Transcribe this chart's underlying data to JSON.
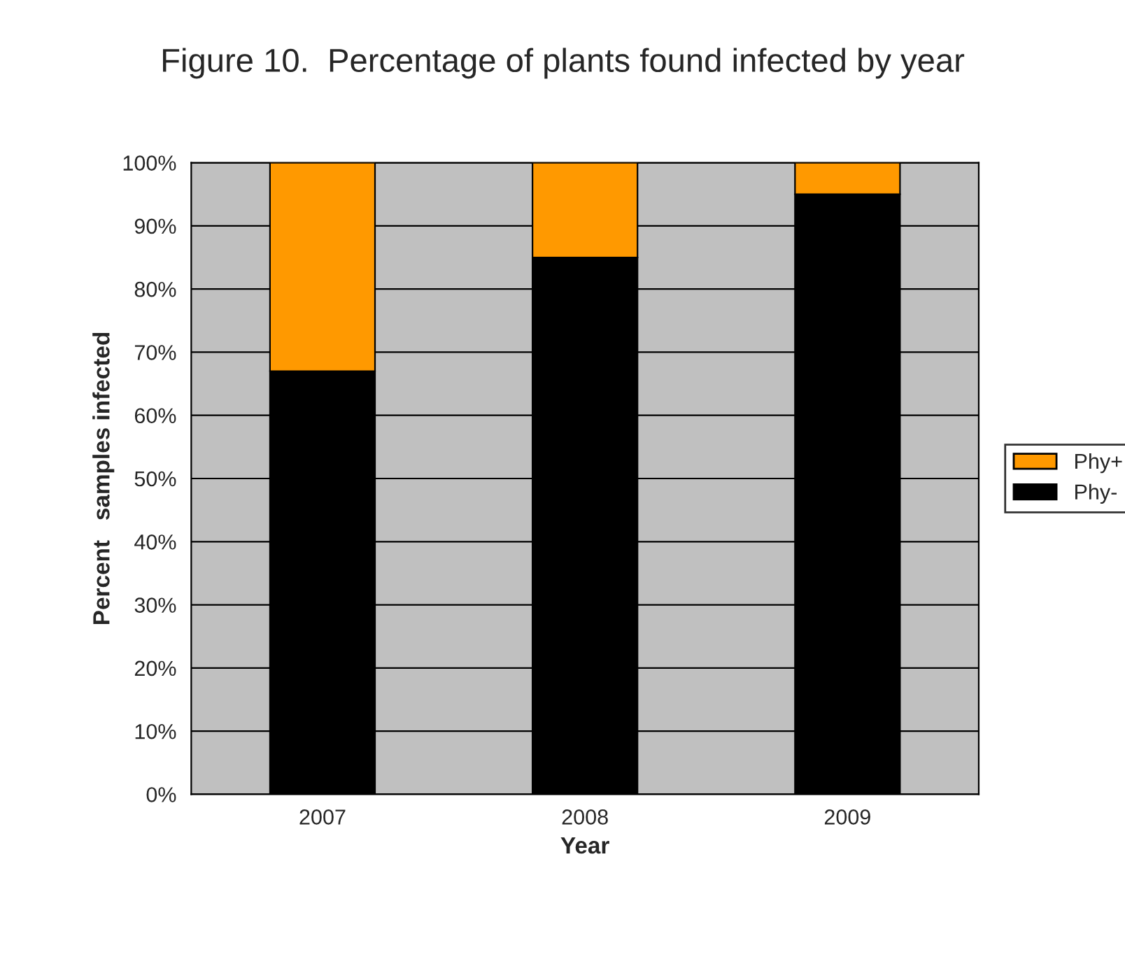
{
  "chart_data": {
    "type": "bar",
    "title": "Figure 10.  Percentage of plants found infected by year",
    "xlabel": "Year",
    "ylabel": "Percent   samples infected",
    "categories": [
      "2007",
      "2008",
      "2009"
    ],
    "series": [
      {
        "name": "Phy-",
        "color": "#000000",
        "values": [
          67,
          85,
          95
        ]
      },
      {
        "name": "Phy+",
        "color": "#ff9900",
        "values": [
          33,
          15,
          5
        ]
      }
    ],
    "stacked": true,
    "ylim": [
      0,
      100
    ],
    "yticks": [
      {
        "value": 0,
        "label": "0%"
      },
      {
        "value": 10,
        "label": "10%"
      },
      {
        "value": 20,
        "label": "20%"
      },
      {
        "value": 30,
        "label": "30%"
      },
      {
        "value": 40,
        "label": "40%"
      },
      {
        "value": 50,
        "label": "50%"
      },
      {
        "value": 60,
        "label": "60%"
      },
      {
        "value": 70,
        "label": "70%"
      },
      {
        "value": 80,
        "label": "80%"
      },
      {
        "value": 90,
        "label": "90%"
      },
      {
        "value": 100,
        "label": "100%"
      }
    ],
    "grid": "y",
    "legend": "right"
  }
}
